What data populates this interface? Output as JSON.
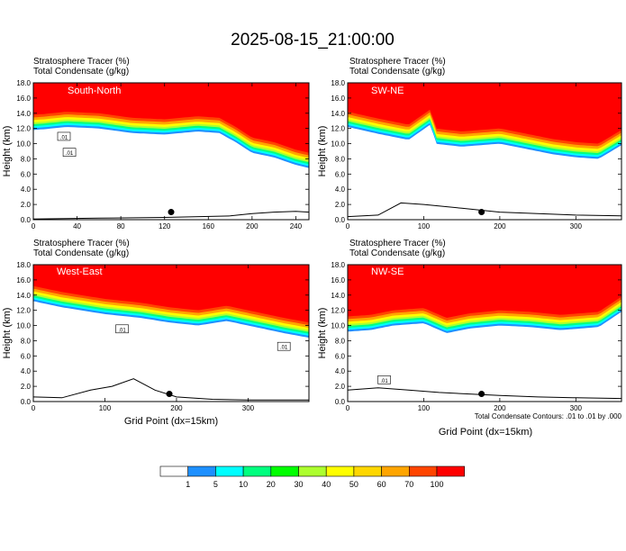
{
  "title": "2025-08-15_21:00:00",
  "chart_data": [
    {
      "type": "heatmap",
      "panel": "South-North",
      "label": "South-North",
      "header_line1": "Stratosphere Tracer   (%)",
      "header_line2": "Total Condensate   (g/kg)",
      "xlabel": "",
      "ylabel": "Height (km)",
      "xlim": [
        0,
        252
      ],
      "ylim": [
        0,
        18
      ],
      "xticks": [
        0,
        40,
        80,
        120,
        160,
        200,
        240
      ],
      "yticks": [
        0.0,
        2.0,
        4.0,
        6.0,
        8.0,
        10.0,
        12.0,
        14.0,
        16.0,
        18.0
      ],
      "tropopause_km": [
        [
          0,
          13.8
        ],
        [
          10,
          13.9
        ],
        [
          30,
          14.2
        ],
        [
          60,
          14.0
        ],
        [
          90,
          13.4
        ],
        [
          120,
          13.2
        ],
        [
          150,
          13.6
        ],
        [
          170,
          13.4
        ],
        [
          185,
          12.2
        ],
        [
          200,
          10.8
        ],
        [
          220,
          10.2
        ],
        [
          240,
          9.2
        ],
        [
          252,
          8.8
        ]
      ],
      "terrain_km": [
        [
          0,
          0.1
        ],
        [
          60,
          0.2
        ],
        [
          120,
          0.3
        ],
        [
          180,
          0.5
        ],
        [
          200,
          0.8
        ],
        [
          220,
          1.0
        ],
        [
          240,
          1.1
        ],
        [
          252,
          1.0
        ]
      ],
      "marker": {
        "x": 126,
        "y": 1.0
      },
      "contour_labels": [
        {
          "x": 28,
          "y": 10.9,
          "text": ".01"
        },
        {
          "x": 33,
          "y": 8.8,
          "text": ".01"
        }
      ]
    },
    {
      "type": "heatmap",
      "panel": "SW-NE",
      "label": "SW-NE",
      "header_line1": "Stratosphere Tracer   (%)",
      "header_line2": "Total Condensate   (g/kg)",
      "xlabel": "",
      "ylabel": "Height (km)",
      "xlim": [
        0,
        360
      ],
      "ylim": [
        0,
        18
      ],
      "xticks": [
        0,
        100,
        200,
        300
      ],
      "yticks": [
        0.0,
        2.0,
        4.0,
        6.0,
        8.0,
        10.0,
        12.0,
        14.0,
        16.0,
        18.0
      ],
      "tropopause_km": [
        [
          0,
          14.2
        ],
        [
          40,
          13.3
        ],
        [
          80,
          12.5
        ],
        [
          110,
          14.6
        ],
        [
          115,
          12.0
        ],
        [
          150,
          11.6
        ],
        [
          200,
          12.0
        ],
        [
          240,
          11.2
        ],
        [
          270,
          10.6
        ],
        [
          300,
          10.2
        ],
        [
          330,
          10.0
        ],
        [
          360,
          11.8
        ]
      ],
      "terrain_km": [
        [
          0,
          0.4
        ],
        [
          40,
          0.6
        ],
        [
          70,
          2.2
        ],
        [
          100,
          2.0
        ],
        [
          150,
          1.5
        ],
        [
          200,
          1.0
        ],
        [
          250,
          0.8
        ],
        [
          300,
          0.6
        ],
        [
          360,
          0.5
        ]
      ],
      "marker": {
        "x": 176,
        "y": 1.0
      },
      "contour_labels": []
    },
    {
      "type": "heatmap",
      "panel": "West-East",
      "label": "West-East",
      "header_line1": "Stratosphere Tracer   (%)",
      "header_line2": "Total Condensate   (g/kg)",
      "xlabel": "Grid Point  (dx=15km)",
      "ylabel": "Height (km)",
      "xlim": [
        0,
        385
      ],
      "ylim": [
        0,
        18
      ],
      "xticks": [
        0,
        100,
        200,
        300
      ],
      "yticks": [
        0.0,
        2.0,
        4.0,
        6.0,
        8.0,
        10.0,
        12.0,
        14.0,
        16.0,
        18.0
      ],
      "tropopause_km": [
        [
          0,
          15.2
        ],
        [
          40,
          14.4
        ],
        [
          100,
          13.5
        ],
        [
          150,
          13.0
        ],
        [
          190,
          12.4
        ],
        [
          230,
          12.0
        ],
        [
          270,
          12.6
        ],
        [
          310,
          11.8
        ],
        [
          350,
          11.0
        ],
        [
          385,
          10.4
        ]
      ],
      "terrain_km": [
        [
          0,
          0.6
        ],
        [
          40,
          0.5
        ],
        [
          80,
          1.5
        ],
        [
          110,
          2.0
        ],
        [
          140,
          3.0
        ],
        [
          170,
          1.5
        ],
        [
          200,
          0.6
        ],
        [
          250,
          0.3
        ],
        [
          300,
          0.2
        ],
        [
          385,
          0.2
        ]
      ],
      "marker": {
        "x": 190,
        "y": 1.0
      },
      "contour_labels": [
        {
          "x": 124,
          "y": 9.5,
          "text": ".01"
        },
        {
          "x": 350,
          "y": 7.2,
          "text": ".01"
        }
      ]
    },
    {
      "type": "heatmap",
      "panel": "NW-SE",
      "label": "NW-SE",
      "header_line1": "Stratosphere Tracer   (%)",
      "header_line2": "Total Condensate   (g/kg)",
      "xlabel": "Grid Point  (dx=15km)",
      "ylabel": "Height (km)",
      "xlim": [
        0,
        360
      ],
      "ylim": [
        0,
        18
      ],
      "xticks": [
        0,
        100,
        200,
        300
      ],
      "yticks": [
        0.0,
        2.0,
        4.0,
        6.0,
        8.0,
        10.0,
        12.0,
        14.0,
        16.0,
        18.0
      ],
      "tropopause_km": [
        [
          0,
          11.2
        ],
        [
          30,
          11.4
        ],
        [
          60,
          12.0
        ],
        [
          100,
          12.3
        ],
        [
          130,
          11.0
        ],
        [
          160,
          11.6
        ],
        [
          200,
          12.0
        ],
        [
          240,
          11.8
        ],
        [
          280,
          11.4
        ],
        [
          330,
          11.8
        ],
        [
          360,
          13.8
        ]
      ],
      "terrain_km": [
        [
          0,
          1.5
        ],
        [
          40,
          1.8
        ],
        [
          80,
          1.5
        ],
        [
          120,
          1.2
        ],
        [
          160,
          1.0
        ],
        [
          200,
          0.8
        ],
        [
          250,
          0.6
        ],
        [
          300,
          0.5
        ],
        [
          360,
          0.4
        ]
      ],
      "marker": {
        "x": 176,
        "y": 1.0
      },
      "contour_labels": [
        {
          "x": 48,
          "y": 2.8,
          "text": ".01"
        }
      ]
    }
  ],
  "contour_note": "Total Condensate Contours: .01 to .01 by .000",
  "colorbar": {
    "labels": [
      "1",
      "5",
      "10",
      "20",
      "30",
      "40",
      "50",
      "60",
      "70",
      "100"
    ],
    "colors": [
      "#ffffff",
      "#1e90ff",
      "#00ffff",
      "#00ff7f",
      "#00ff00",
      "#adff2f",
      "#ffff00",
      "#ffd700",
      "#ffa500",
      "#ff4500",
      "#ff0000"
    ]
  }
}
